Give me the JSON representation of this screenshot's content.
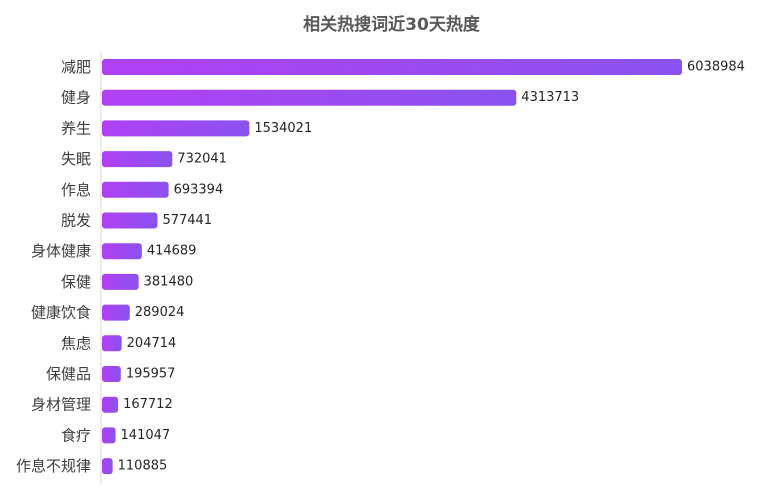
{
  "chart_data": {
    "type": "bar",
    "orientation": "horizontal",
    "title": "相关热搜词近30天热度",
    "xlabel": "",
    "ylabel": "",
    "categories": [
      "减肥",
      "健身",
      "养生",
      "失眠",
      "作息",
      "脱发",
      "身体健康",
      "保健",
      "健康饮食",
      "焦虑",
      "保健品",
      "身材管理",
      "食疗",
      "作息不规律"
    ],
    "values": [
      6038984,
      4313713,
      1534021,
      732041,
      693394,
      577441,
      414689,
      381480,
      289024,
      204714,
      195957,
      167712,
      141047,
      110885
    ],
    "value_labels": [
      "6038984",
      "4313713",
      "1534021",
      "732041",
      "693394",
      "577441",
      "414689",
      "381480",
      "289024",
      "204714",
      "195957",
      "167712",
      "141047",
      "110885"
    ],
    "xlim": [
      0,
      6038984
    ],
    "grid": false,
    "legend": "none",
    "bar_gradient": [
      "#b040f4",
      "#8a52f0"
    ],
    "axis_color": "#d9d9d9"
  }
}
